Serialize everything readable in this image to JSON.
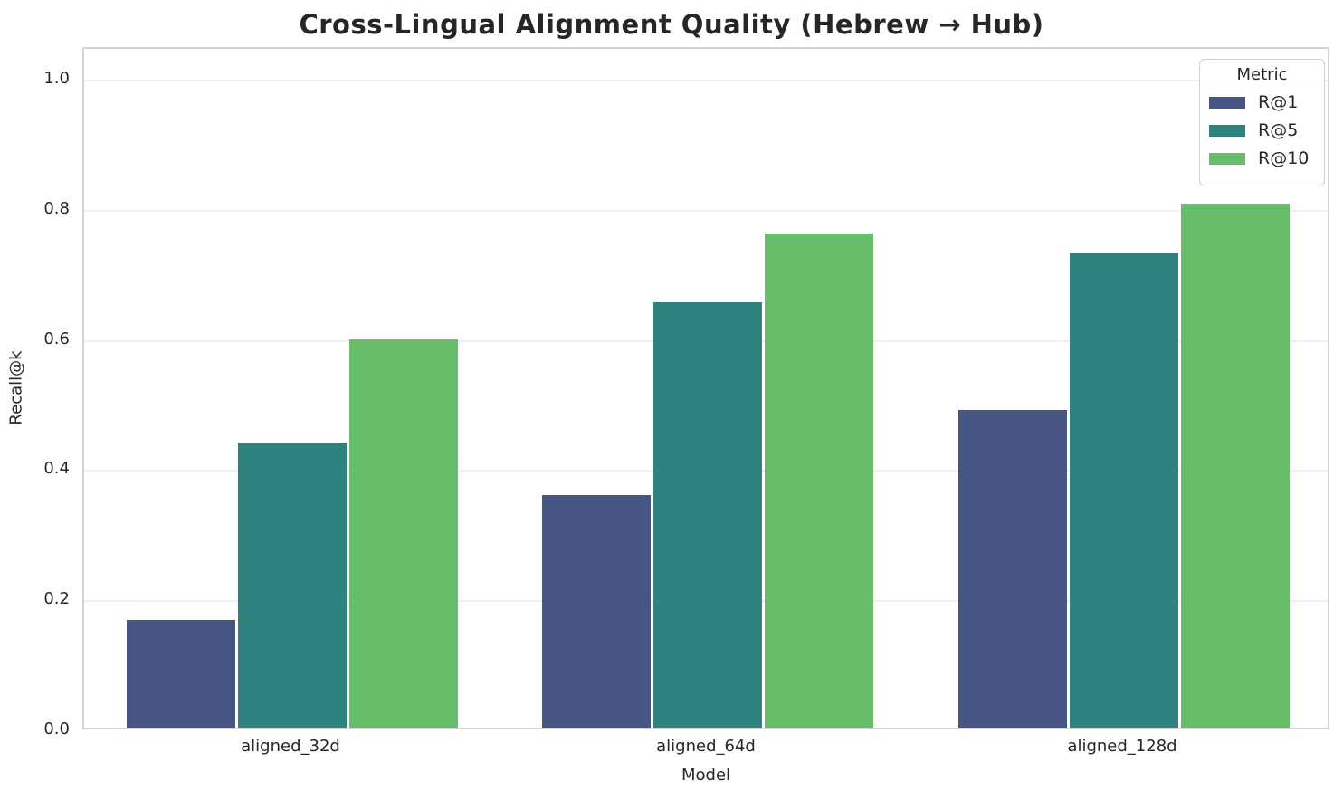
{
  "title": "Cross-Lingual Alignment Quality (Hebrew → Hub)",
  "chart_data": {
    "type": "bar",
    "title": "Cross-Lingual Alignment Quality (Hebrew → Hub)",
    "categories": [
      "aligned_32d",
      "aligned_64d",
      "aligned_128d"
    ],
    "series": [
      {
        "name": "R@1",
        "color": "#475583",
        "values": [
          0.165,
          0.357,
          0.488
        ]
      },
      {
        "name": "R@5",
        "color": "#2e837f",
        "values": [
          0.438,
          0.654,
          0.729
        ]
      },
      {
        "name": "R@10",
        "color": "#68bd6b",
        "values": [
          0.597,
          0.759,
          0.805
        ]
      }
    ],
    "xlabel": "Model",
    "ylabel": "Recall@k",
    "ylim": [
      0,
      1.05
    ],
    "yticks": [
      0.0,
      0.2,
      0.4,
      0.6,
      0.8,
      1.0
    ],
    "ytick_labels": [
      "0.0",
      "0.2",
      "0.4",
      "0.6",
      "0.8",
      "1.0"
    ],
    "grid": "horizontal",
    "legend_title": "Metric",
    "legend_position": "upper right",
    "accent_colors": {
      "grid": "#efefef",
      "spine": "#d4d4d4",
      "text": "#262626"
    }
  }
}
